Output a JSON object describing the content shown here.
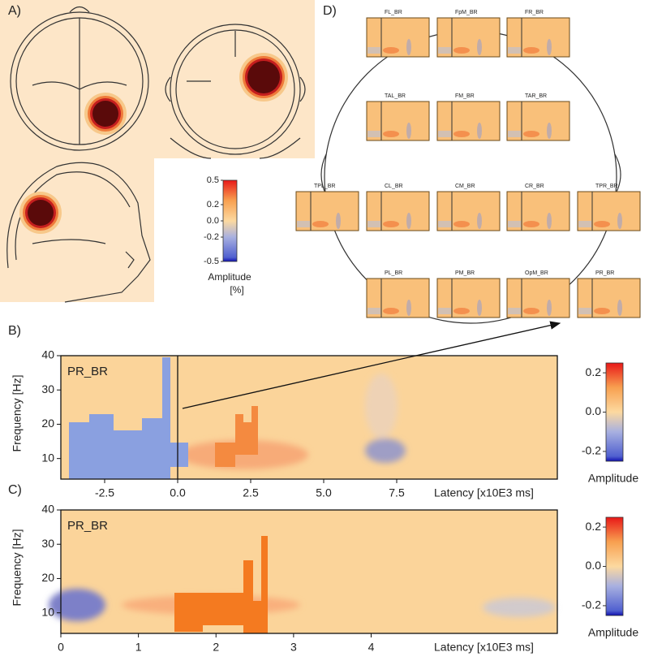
{
  "panel_labels": [
    "A)",
    "B)",
    "C)",
    "D)"
  ],
  "colorbar_a": {
    "title": "Amplitude",
    "unit": "[%]",
    "ylim": [
      -0.5,
      0.5
    ],
    "yticks": [
      0.5,
      0.2,
      {
        "value": 0,
        "label": "0.0"
      },
      -0.2,
      -0.5
    ]
  },
  "electrodes": [
    "FL_BR",
    "FpM_BR",
    "FR_BR",
    "TAL_BR",
    "FM_BR",
    "TAR_BR",
    "TPL_BR",
    "CL_BR",
    "CM_BR",
    "CR_BR",
    "TPR_BR",
    "PL_BR",
    "PM_BR",
    "OpM_BR",
    "PR_BR"
  ],
  "chart_data": [
    {
      "type": "heatmap",
      "label": "PR_BR",
      "xlabel": "Latency [x10E3 ms]",
      "ylabel": "Frequency [Hz]",
      "xlim": [
        -4,
        13
      ],
      "xticks": [
        -2.5,
        {
          "value": 0,
          "label": "0.0"
        },
        2.5,
        {
          "value": 5,
          "label": "5.0"
        },
        7.5
      ],
      "ylim": [
        4,
        40
      ],
      "yticks": [
        10,
        20,
        30,
        40
      ],
      "colorbar": {
        "title": "Amplitude",
        "ylim": [
          -0.25,
          0.25
        ],
        "yticks": [
          0.2,
          {
            "value": 0,
            "label": "0.0"
          },
          -0.2
        ]
      }
    },
    {
      "type": "heatmap",
      "label": "PR_BR",
      "xlabel": "Latency [x10E3 ms]",
      "ylabel": "Frequency [Hz]",
      "xlim": [
        0,
        6.4
      ],
      "xticks": [
        0,
        1,
        2,
        3,
        4
      ],
      "ylim": [
        4,
        40
      ],
      "yticks": [
        10,
        20,
        30,
        40
      ],
      "colorbar": {
        "title": "Amplitude",
        "ylim": [
          -0.25,
          0.25
        ],
        "yticks": [
          0.2,
          {
            "value": 0,
            "label": "0.0"
          },
          -0.2
        ]
      }
    }
  ]
}
